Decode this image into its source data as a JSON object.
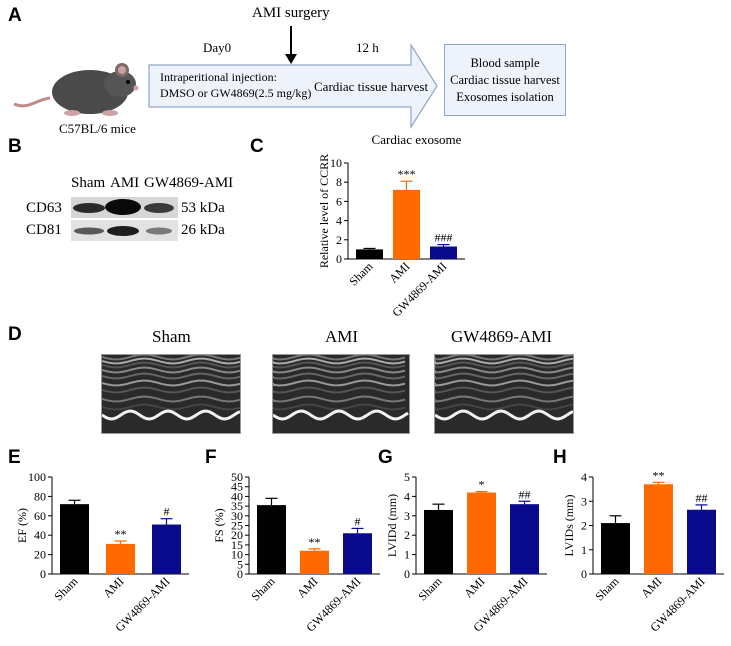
{
  "panels": {
    "A": "A",
    "B": "B",
    "C": "C",
    "D": "D",
    "E": "E",
    "F": "F",
    "G": "G",
    "H": "H"
  },
  "timeline": {
    "surgery": "AMI surgery",
    "day0": "Day0",
    "h12": "12 h",
    "injection_line1": "Intraperitional injection:",
    "injection_line2": "DMSO or GW4869(2.5 mg/kg)",
    "harvest": "Cardiac tissue harvest",
    "mouse_label": "C57BL/6 mice",
    "outcomes": [
      "Blood sample",
      "Cardiac tissue harvest",
      "Exosomes isolation"
    ]
  },
  "western": {
    "lanes": [
      "Sham",
      "AMI",
      "GW4869-AMI"
    ],
    "rows": [
      {
        "protein": "CD63",
        "size": "53 kDa"
      },
      {
        "protein": "CD81",
        "size": "26 kDa"
      }
    ]
  },
  "echo": {
    "labels": [
      "Sham",
      "AMI",
      "GW4869-AMI"
    ]
  },
  "colors": {
    "sham": "#000000",
    "ami": "#ff6a00",
    "gw": "#0a0a8c"
  },
  "chart_data": [
    {
      "panel": "C",
      "type": "bar",
      "title": "Cardiac exosome",
      "ylabel": "Relative level of CCRR",
      "categories": [
        "Sham",
        "AMI",
        "GW4869-AMI"
      ],
      "values": [
        1.0,
        7.2,
        1.3
      ],
      "errors": [
        0.1,
        0.9,
        0.2
      ],
      "ylim": [
        0,
        10
      ],
      "yticks": [
        0,
        2,
        4,
        6,
        8,
        10
      ],
      "annotations": [
        "",
        "***",
        "###"
      ]
    },
    {
      "panel": "E",
      "type": "bar",
      "ylabel": "EF (%)",
      "categories": [
        "Sham",
        "AMI",
        "GW4869-AMI"
      ],
      "values": [
        72,
        31,
        51
      ],
      "errors": [
        4,
        3,
        6
      ],
      "ylim": [
        0,
        100
      ],
      "yticks": [
        0,
        20,
        40,
        60,
        80,
        100
      ],
      "annotations": [
        "",
        "**",
        "#"
      ]
    },
    {
      "panel": "F",
      "type": "bar",
      "ylabel": "FS (%)",
      "categories": [
        "Sham",
        "AMI",
        "GW4869-AMI"
      ],
      "values": [
        35.5,
        12,
        21
      ],
      "errors": [
        3.5,
        1,
        2.5
      ],
      "ylim": [
        0,
        50
      ],
      "yticks": [
        0,
        5,
        10,
        15,
        20,
        25,
        30,
        35,
        40,
        45,
        50
      ],
      "annotations": [
        "",
        "**",
        "#"
      ]
    },
    {
      "panel": "G",
      "type": "bar",
      "ylabel": "LVIDd (mm)",
      "categories": [
        "Sham",
        "AMI",
        "GW4869-AMI"
      ],
      "values": [
        3.3,
        4.2,
        3.6
      ],
      "errors": [
        0.3,
        0.05,
        0.15
      ],
      "ylim": [
        0,
        5
      ],
      "yticks": [
        0,
        1,
        2,
        3,
        4,
        5
      ],
      "annotations": [
        "",
        "*",
        "##"
      ]
    },
    {
      "panel": "H",
      "type": "bar",
      "ylabel": "LVIDs (mm)",
      "categories": [
        "Sham",
        "AMI",
        "GW4869-AMI"
      ],
      "values": [
        2.1,
        3.7,
        2.65
      ],
      "errors": [
        0.3,
        0.08,
        0.2
      ],
      "ylim": [
        0,
        4
      ],
      "yticks": [
        0,
        1,
        2,
        3,
        4
      ],
      "annotations": [
        "",
        "**",
        "##"
      ]
    }
  ]
}
